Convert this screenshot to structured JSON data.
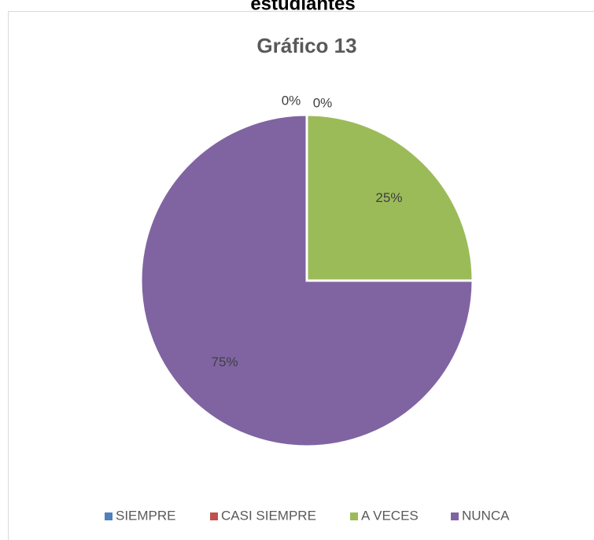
{
  "header": "estudiantes",
  "chart_data": {
    "type": "pie",
    "title": "Gráfico 13",
    "categories": [
      "SIEMPRE",
      "CASI SIEMPRE",
      "A VECES",
      "NUNCA"
    ],
    "values": [
      0,
      0,
      25,
      75
    ],
    "value_labels": [
      "0%",
      "0%",
      "25%",
      "75%"
    ],
    "colors": [
      "#4f81bd",
      "#c0504d",
      "#9bbb59",
      "#8064a2"
    ],
    "legend": "bottom"
  }
}
